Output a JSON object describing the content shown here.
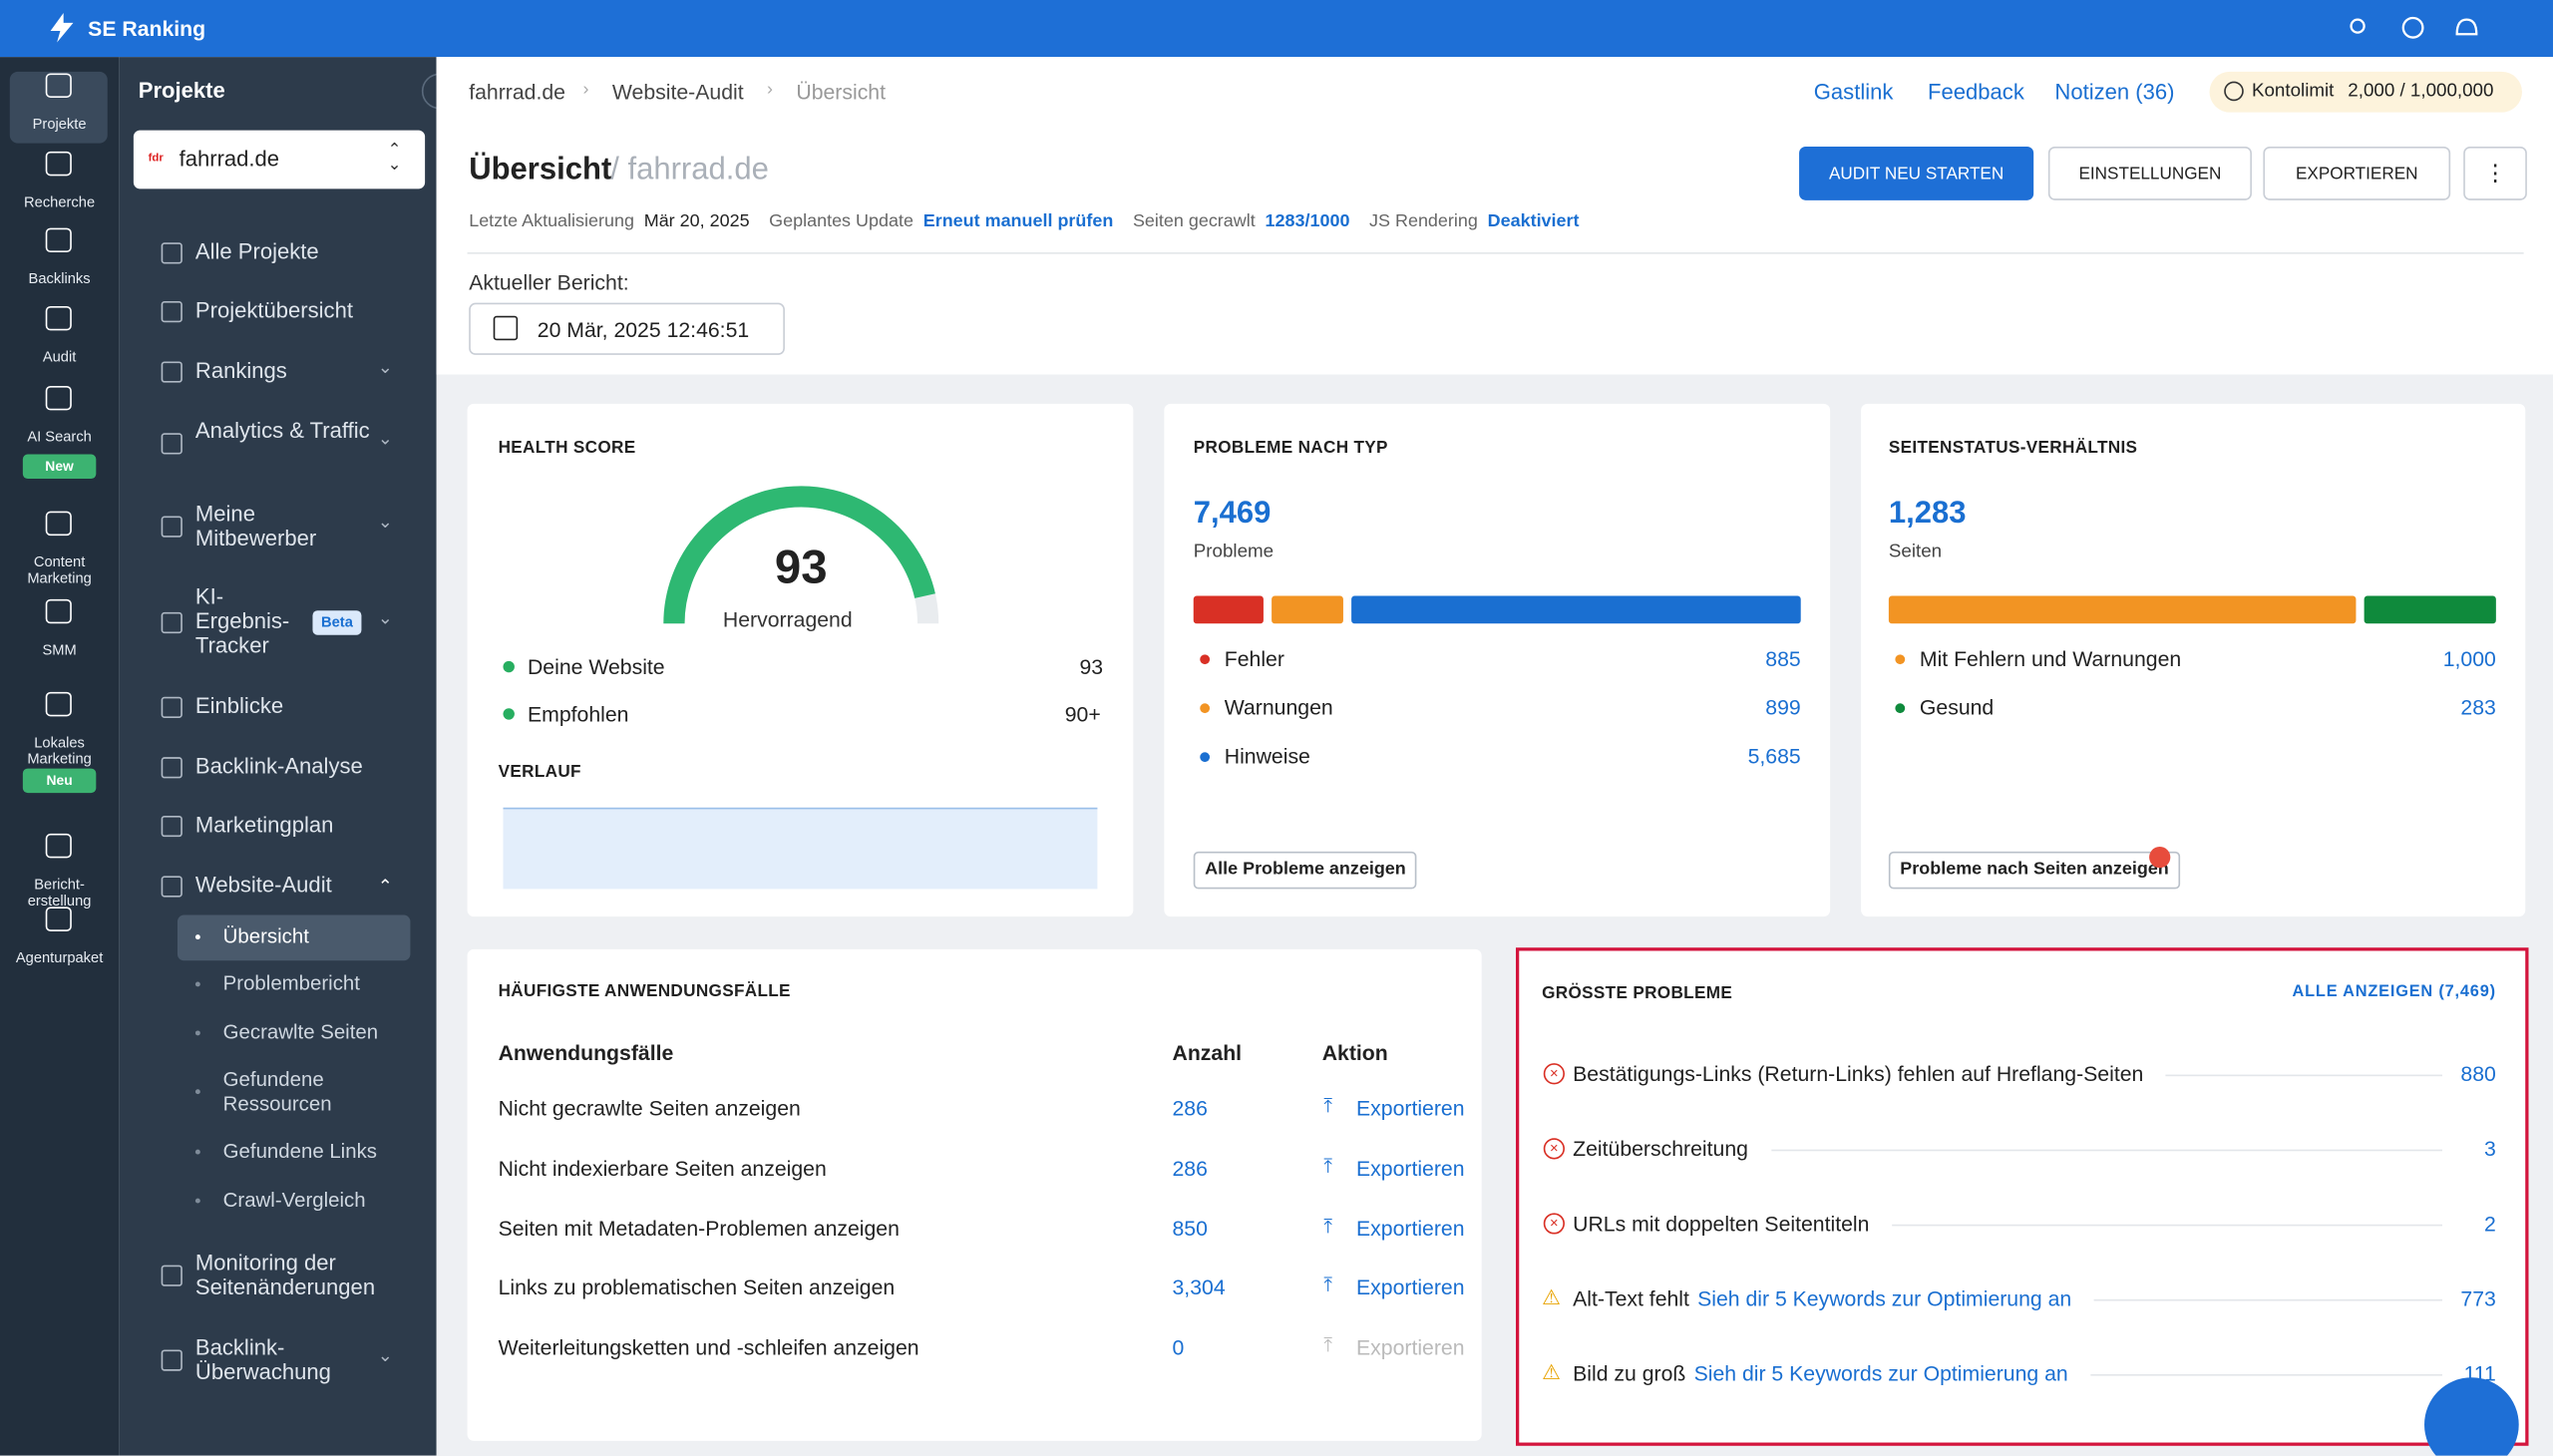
{
  "topbar": {
    "brand": "SE Ranking"
  },
  "rail": [
    {
      "label": "Projekte"
    },
    {
      "label": "Recherche"
    },
    {
      "label": "Backlinks"
    },
    {
      "label": "Audit"
    },
    {
      "label": "AI Search",
      "badge": "New"
    },
    {
      "label": "Content Marketing"
    },
    {
      "label": "SMM"
    },
    {
      "label": "Lokales Marketing",
      "badge": "Neu"
    },
    {
      "label": "Bericht-erstellung"
    },
    {
      "label": "Agenturpaket"
    }
  ],
  "sidebar": {
    "title": "Projekte",
    "project": "fahrrad.de",
    "nav": [
      "Alle Projekte",
      "Projektübersicht",
      "Rankings",
      "Analytics & Traffic",
      "Meine Mitbewerber",
      "KI-Ergebnis-Tracker",
      "Einblicke",
      "Backlink-Analyse",
      "Marketingplan",
      "Website-Audit"
    ],
    "beta": "Beta",
    "audit_sub": [
      "Übersicht",
      "Problembericht",
      "Gecrawlte Seiten",
      "Gefundene Ressourcen",
      "Gefundene Links",
      "Crawl-Vergleich"
    ],
    "nav_bottom": [
      "Monitoring der Seitenänderungen",
      "Backlink-Überwachung"
    ]
  },
  "header": {
    "breadcrumb": [
      "fahrrad.de",
      "Website-Audit",
      "Übersicht"
    ],
    "links": [
      "Gastlink",
      "Feedback",
      "Notizen (36)"
    ],
    "limit_label": "Kontolimit",
    "limit_value": "2,000 / 1,000,000",
    "title": "Übersicht",
    "title_project": "/ fahrrad.de",
    "buttons": [
      "AUDIT NEU STARTEN",
      "EINSTELLUNGEN",
      "EXPORTIEREN"
    ],
    "meta": [
      {
        "label": "Letzte Aktualisierung",
        "value": "Mär 20, 2025"
      },
      {
        "label": "Geplantes Update",
        "value": "Erneut manuell prüfen"
      },
      {
        "label": "Seiten gecrawlt",
        "value": "1283/1000"
      },
      {
        "label": "JS Rendering",
        "value": "Deaktiviert"
      }
    ],
    "report_label": "Aktueller Bericht:",
    "report_date": "20 Mär, 2025 12:46:51"
  },
  "health": {
    "title": "HEALTH SCORE",
    "score": 93,
    "rating": "Hervorragend",
    "rows": [
      {
        "label": "Deine Website",
        "value": "93"
      },
      {
        "label": "Empfohlen",
        "value": "90+"
      }
    ],
    "history_title": "VERLAUF"
  },
  "problems": {
    "title": "PROBLEME NACH TYP",
    "total": "7,469",
    "total_label": "Probleme",
    "items": [
      {
        "label": "Fehler",
        "value": 885,
        "color": "#d93025"
      },
      {
        "label": "Warnungen",
        "value": 899,
        "color": "#f29423"
      },
      {
        "label": "Hinweise",
        "value": 5685,
        "value_label": "5,685",
        "color": "#1a6fd1"
      }
    ],
    "button": "Alle Probleme anzeigen"
  },
  "status": {
    "title": "SEITENSTATUS-VERHÄLTNIS",
    "total": "1,283",
    "total_label": "Seiten",
    "items": [
      {
        "label": "Mit Fehlern und Warnungen",
        "value": 1000,
        "value_label": "1,000",
        "color": "#f29423"
      },
      {
        "label": "Gesund",
        "value": 283,
        "color": "#0f8a3c"
      }
    ],
    "button": "Probleme nach Seiten anzeigen"
  },
  "usecases": {
    "title": "HÄUFIGSTE ANWENDUNGSFÄLLE",
    "columns": [
      "Anwendungsfälle",
      "Anzahl",
      "Aktion"
    ],
    "rows": [
      {
        "label": "Nicht gecrawlte Seiten anzeigen",
        "count": "286",
        "action": "Exportieren"
      },
      {
        "label": "Nicht indexierbare Seiten anzeigen",
        "count": "286",
        "action": "Exportieren"
      },
      {
        "label": "Seiten mit Metadaten-Problemen anzeigen",
        "count": "850",
        "action": "Exportieren"
      },
      {
        "label": "Links zu problematischen Seiten anzeigen",
        "count": "3,304",
        "action": "Exportieren"
      },
      {
        "label": "Weiterleitungsketten und -schleifen anzeigen",
        "count": "0",
        "action": "Exportieren"
      }
    ]
  },
  "top_issues": {
    "title": "GRÖSSTE PROBLEME",
    "see_all": "ALLE ANZEIGEN (7,469)",
    "rows": [
      {
        "label": "Bestätigungs-Links (Return-Links) fehlen auf Hreflang-Seiten",
        "count": "880",
        "severity": "error"
      },
      {
        "label": "Zeitüberschreitung",
        "count": "3",
        "severity": "error"
      },
      {
        "label": "URLs mit doppelten Seitentiteln",
        "count": "2",
        "severity": "error"
      },
      {
        "label": "Alt-Text fehlt",
        "link": "Sieh dir 5 Keywords zur Optimierung an",
        "count": "773",
        "severity": "warning"
      },
      {
        "label": "Bild zu groß",
        "link": "Sieh dir 5 Keywords zur Optimierung an",
        "count": "111",
        "severity": "warning"
      }
    ]
  }
}
